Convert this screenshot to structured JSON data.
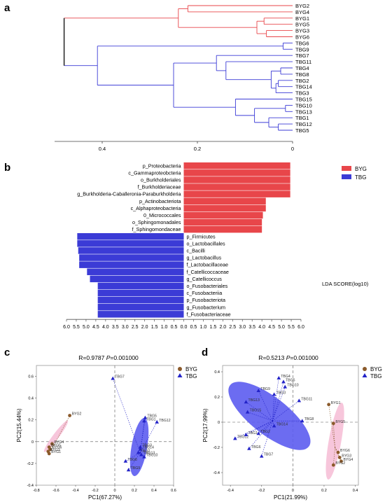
{
  "colors": {
    "byg": "#e8464a",
    "tbg": "#3b3bd6",
    "tree_black": "#222222",
    "byg_point": "#8b5a2b",
    "tbg_point": "#2323c8",
    "byg_ellipse": "#f4b3cf",
    "tbg_ellipse": "#5c5cf0"
  },
  "chart_data": [
    {
      "panel_label": "a",
      "type": "dendrogram",
      "leaves": [
        "BYG2",
        "BYG4",
        "BYG1",
        "BYG5",
        "BYG3",
        "BYG6",
        "TBG6",
        "TBG9",
        "TBG7",
        "TBG11",
        "TBG4",
        "TBG8",
        "TBG2",
        "TBG14",
        "TBG3",
        "TBG15",
        "TBG10",
        "TBG13",
        "TBG1",
        "TBG12",
        "TBG5"
      ],
      "groups": {
        "BYG": [
          "BYG2",
          "BYG4",
          "BYG1",
          "BYG5",
          "BYG3",
          "BYG6"
        ],
        "TBG": [
          "TBG6",
          "TBG9",
          "TBG7",
          "TBG11",
          "TBG4",
          "TBG8",
          "TBG2",
          "TBG14",
          "TBG3",
          "TBG15",
          "TBG10",
          "TBG13",
          "TBG1",
          "TBG12",
          "TBG5"
        ]
      },
      "merges": [
        {
          "id": "m1",
          "children": [
            "BYG2",
            "BYG4"
          ],
          "height": 0.22,
          "group": "BYG"
        },
        {
          "id": "m2",
          "children": [
            "BYG1",
            "BYG5"
          ],
          "height": 0.06,
          "group": "BYG"
        },
        {
          "id": "m3",
          "children": [
            "BYG3",
            "BYG6"
          ],
          "height": 0.055,
          "group": "BYG"
        },
        {
          "id": "m4",
          "children": [
            "m2",
            "m3"
          ],
          "height": 0.075,
          "group": "BYG"
        },
        {
          "id": "m5",
          "children": [
            "m1",
            "m4"
          ],
          "height": 0.24,
          "group": "BYG"
        },
        {
          "id": "m6",
          "children": [
            "TBG6",
            "TBG9"
          ],
          "height": 0.02,
          "group": "TBG"
        },
        {
          "id": "m7",
          "children": [
            "TBG4",
            "TBG8"
          ],
          "height": 0.025,
          "group": "TBG"
        },
        {
          "id": "m8",
          "children": [
            "TBG2",
            "TBG14"
          ],
          "height": 0.03,
          "group": "TBG"
        },
        {
          "id": "m9",
          "children": [
            "m8",
            "TBG3"
          ],
          "height": 0.035,
          "group": "TBG"
        },
        {
          "id": "m10",
          "children": [
            "m7",
            "m9"
          ],
          "height": 0.045,
          "group": "TBG"
        },
        {
          "id": "m11",
          "children": [
            "TBG11",
            "m10"
          ],
          "height": 0.14,
          "group": "TBG"
        },
        {
          "id": "m12",
          "children": [
            "TBG7",
            "m11"
          ],
          "height": 0.16,
          "group": "TBG"
        },
        {
          "id": "m13",
          "children": [
            "TBG10",
            "TBG13"
          ],
          "height": 0.015,
          "group": "TBG"
        },
        {
          "id": "m14",
          "children": [
            "TBG12",
            "TBG5"
          ],
          "height": 0.03,
          "group": "TBG"
        },
        {
          "id": "m15",
          "children": [
            "TBG1",
            "m14"
          ],
          "height": 0.05,
          "group": "TBG"
        },
        {
          "id": "m16",
          "children": [
            "m13",
            "m15"
          ],
          "height": 0.08,
          "group": "TBG"
        },
        {
          "id": "m17",
          "children": [
            "TBG15",
            "m16"
          ],
          "height": 0.12,
          "group": "TBG"
        },
        {
          "id": "m18",
          "children": [
            "m12",
            "m17"
          ],
          "height": 0.25,
          "group": "TBG"
        },
        {
          "id": "m19",
          "children": [
            "m6",
            "m18"
          ],
          "height": 0.41,
          "group": "TBG"
        },
        {
          "id": "root",
          "children": [
            "m5",
            "m19"
          ],
          "height": 0.48,
          "group": "root"
        }
      ],
      "xlim": [
        0.5,
        0
      ],
      "ticks": [
        0.4,
        0.2,
        0
      ],
      "tick_labels": [
        "0.4",
        "0.2",
        "0"
      ]
    },
    {
      "panel_label": "b",
      "type": "bar",
      "orientation": "horizontal",
      "xlabel": "LDA SCORE(log10)",
      "xlim": [
        -6,
        6
      ],
      "ticks": [
        -6,
        -5.5,
        -5,
        -4.5,
        -4,
        -3.5,
        -3,
        -2.5,
        -2,
        -1.5,
        -1,
        -0.5,
        0,
        0.5,
        1,
        1.5,
        2,
        2.5,
        3,
        3.5,
        4,
        4.5,
        5,
        5.5,
        6
      ],
      "tick_labels": [
        "6.0",
        "5.5",
        "5.0",
        "4.5",
        "4.0",
        "3.5",
        "3.0",
        "2.5",
        "2.0",
        "1.5",
        "1.0",
        "0.5",
        "0.0",
        "0.5",
        "1.0",
        "1.5",
        "2.0",
        "2.5",
        "3.0",
        "3.5",
        "4.0",
        "4.5",
        "5.0",
        "5.5",
        "6.0"
      ],
      "legend": [
        "BYG",
        "TBG"
      ],
      "legend_position": "top-right",
      "series": [
        {
          "name": "BYG",
          "categories": [
            "p_Proteobacteria",
            "c_Gammaproteobcteria",
            "o_Burkholderiales",
            "f_Burkholderiaceae",
            "g_Burkholderia-Caballeronia-Paraburkholderia",
            "p_Actinobacteriota",
            "c_Alphaproteobacteria",
            "0_Micrococcales",
            "o_Sphingomonadales",
            "f_Sphingomondaceae"
          ],
          "values": [
            5.45,
            5.45,
            5.45,
            5.45,
            5.45,
            4.2,
            4.2,
            4.05,
            4.0,
            4.0
          ]
        },
        {
          "name": "TBG",
          "categories": [
            "p_Firmicutes",
            "o_Lactobacillales",
            "c_Bacilli",
            "g_Lactobacillus",
            "f_Lactobacillaceae",
            "f_Catellicoccaceae",
            "g_Catellicoccus",
            "o_Fusobacteriales",
            "c_Fusobacteriia",
            "p_Fusobacteriota",
            "g_Fusobacterium",
            "f_Fusobacteriaceae"
          ],
          "values": [
            -5.45,
            -5.45,
            -5.4,
            -5.35,
            -5.35,
            -4.95,
            -4.8,
            -4.4,
            -4.4,
            -4.4,
            -4.4,
            -4.4
          ]
        }
      ]
    },
    {
      "panel_label": "c",
      "type": "scatter",
      "title": "R=0.9787 P=0.001000",
      "title_stat": "R=0.9787 ",
      "title_p": "P",
      "title_rest": "=0.001000",
      "xlabel": "PC1(67.27%)",
      "ylabel": "PC2(15.44%)",
      "xlim": [
        -0.8,
        0.6
      ],
      "ylim": [
        -0.4,
        0.7
      ],
      "xticks": [
        -0.8,
        -0.6,
        -0.4,
        -0.2,
        0,
        0.2,
        0.4,
        0.6
      ],
      "xtick_labels": [
        "-0.8",
        "-0.6",
        "-0.4",
        "-0.2",
        "0",
        "0.2",
        "0.4",
        "0.6"
      ],
      "yticks": [
        -0.4,
        -0.2,
        0,
        0.2,
        0.4,
        0.6
      ],
      "ytick_labels": [
        "-0.4",
        "-0.2",
        "0",
        "0.2",
        "0.4",
        "0.6"
      ],
      "legend": [
        "BYG",
        "TBG"
      ],
      "legend_position": "top-right",
      "series": [
        {
          "name": "BYG",
          "centroid": [
            -0.62,
            -0.03
          ],
          "points": [
            {
              "label": "BYG2",
              "x": -0.46,
              "y": 0.24
            },
            {
              "label": "BYG4",
              "x": -0.64,
              "y": -0.02
            },
            {
              "label": "BYG5",
              "x": -0.67,
              "y": -0.05
            },
            {
              "label": "BYG6",
              "x": -0.66,
              "y": -0.07
            },
            {
              "label": "BYG3",
              "x": -0.68,
              "y": -0.09
            },
            {
              "label": "BYG1",
              "x": -0.67,
              "y": -0.11
            }
          ],
          "ellipse": {
            "cx": -0.6,
            "cy": 0.05,
            "rx": 0.2,
            "ry": 0.03,
            "angle": -53
          }
        },
        {
          "name": "TBG",
          "centroid": [
            0.26,
            -0.1
          ],
          "points": [
            {
              "label": "TBG7",
              "x": -0.02,
              "y": 0.58
            },
            {
              "label": "TBG5",
              "x": 0.31,
              "y": 0.22
            },
            {
              "label": "TBG1",
              "x": 0.3,
              "y": 0.19
            },
            {
              "label": "TBG12",
              "x": 0.43,
              "y": 0.18
            },
            {
              "label": "TBG3",
              "x": 0.26,
              "y": -0.05
            },
            {
              "label": "TBG14",
              "x": 0.26,
              "y": -0.07
            },
            {
              "label": "TBG10",
              "x": 0.3,
              "y": -0.14
            },
            {
              "label": "TBG9",
              "x": 0.14,
              "y": -0.26
            },
            {
              "label": "TBG6",
              "x": 0.11,
              "y": -0.18
            },
            {
              "label": "TBG13",
              "x": 0.27,
              "y": -0.12
            },
            {
              "label": "TBG2",
              "x": 0.24,
              "y": -0.1
            }
          ],
          "ellipse": {
            "cx": 0.25,
            "cy": -0.05,
            "rx": 0.3,
            "ry": 0.08,
            "angle": -80
          }
        }
      ]
    },
    {
      "panel_label": "d",
      "type": "scatter",
      "title": "R=0.5213 P=0.001000",
      "title_stat": "R=0.5213 ",
      "title_p": "P",
      "title_rest": "=0.001000",
      "xlabel": "PC1(21.99%)",
      "ylabel": "PC2(17.99%)",
      "xlim": [
        -0.45,
        0.42
      ],
      "ylim": [
        -0.5,
        0.45
      ],
      "xticks": [
        -0.4,
        -0.2,
        0,
        0.2,
        0.4
      ],
      "xtick_labels": [
        "-0.4",
        "-0.2",
        "0",
        "0.2",
        "0.4"
      ],
      "yticks": [
        -0.4,
        -0.2,
        0,
        0.2,
        0.4
      ],
      "ytick_labels": [
        "-0.4",
        "-0.2",
        "0",
        "0.2",
        "0.4"
      ],
      "legend": [
        "BYG",
        "TBG"
      ],
      "legend_position": "top-right",
      "series": [
        {
          "name": "BYG",
          "centroid": [
            0.27,
            -0.2
          ],
          "points": [
            {
              "label": "BYG1",
              "x": 0.23,
              "y": 0.14
            },
            {
              "label": "BYG5",
              "x": 0.26,
              "y": -0.01
            },
            {
              "label": "BYG6",
              "x": 0.29,
              "y": -0.24
            },
            {
              "label": "BYG3",
              "x": 0.3,
              "y": -0.28
            },
            {
              "label": "BYG4",
              "x": 0.31,
              "y": -0.31
            },
            {
              "label": "BYG2",
              "x": 0.26,
              "y": -0.34
            }
          ],
          "ellipse": {
            "cx": 0.27,
            "cy": -0.15,
            "rx": 0.25,
            "ry": 0.04,
            "angle": -80
          }
        },
        {
          "name": "TBG",
          "centroid": [
            -0.13,
            0.01
          ],
          "points": [
            {
              "label": "TBG4",
              "x": -0.09,
              "y": 0.35
            },
            {
              "label": "TBG5",
              "x": -0.06,
              "y": 0.32
            },
            {
              "label": "TBG10",
              "x": -0.05,
              "y": 0.28
            },
            {
              "label": "TBG11",
              "x": 0.04,
              "y": 0.17
            },
            {
              "label": "TBG9",
              "x": -0.22,
              "y": 0.25
            },
            {
              "label": "TBG3",
              "x": -0.12,
              "y": 0.22
            },
            {
              "label": "TBG13",
              "x": -0.3,
              "y": 0.16
            },
            {
              "label": "TBG15",
              "x": -0.29,
              "y": 0.08
            },
            {
              "label": "TBG8",
              "x": 0.06,
              "y": 0.01
            },
            {
              "label": "TBG14",
              "x": -0.12,
              "y": -0.03
            },
            {
              "label": "TBG12",
              "x": -0.37,
              "y": -0.13
            },
            {
              "label": "TBG1",
              "x": -0.3,
              "y": -0.1
            },
            {
              "label": "TBG6",
              "x": -0.28,
              "y": -0.21
            },
            {
              "label": "TBG2",
              "x": -0.22,
              "y": -0.09
            },
            {
              "label": "TBG7",
              "x": -0.2,
              "y": -0.27
            }
          ],
          "ellipse": {
            "cx": -0.15,
            "cy": 0.05,
            "rx": 0.32,
            "ry": 0.12,
            "angle": 38
          }
        }
      ]
    }
  ]
}
